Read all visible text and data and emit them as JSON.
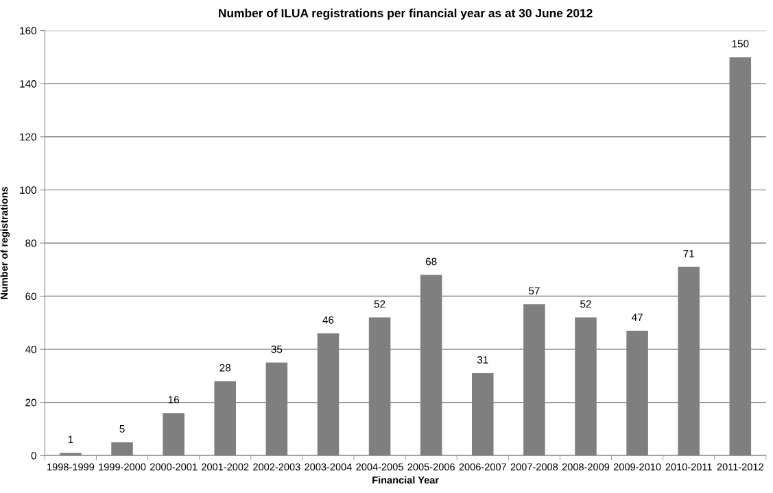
{
  "chart_data": {
    "type": "bar",
    "title": "Number of ILUA registrations per financial year as at 30 June 2012",
    "xlabel": "Financial Year",
    "ylabel": "Number of registrations",
    "categories": [
      "1998-1999",
      "1999-2000",
      "2000-2001",
      "2001-2002",
      "2002-2003",
      "2003-2004",
      "2004-2005",
      "2005-2006",
      "2006-2007",
      "2007-2008",
      "2008-2009",
      "2009-2010",
      "2010-2011",
      "2011-2012"
    ],
    "values": [
      1,
      5,
      16,
      28,
      35,
      46,
      52,
      68,
      31,
      57,
      52,
      47,
      71,
      150
    ],
    "color": "#7f7f7f",
    "ylim": [
      0,
      160
    ],
    "yticks": [
      0,
      20,
      40,
      60,
      80,
      100,
      120,
      140,
      160
    ],
    "grid": "y",
    "data_labels": true
  }
}
